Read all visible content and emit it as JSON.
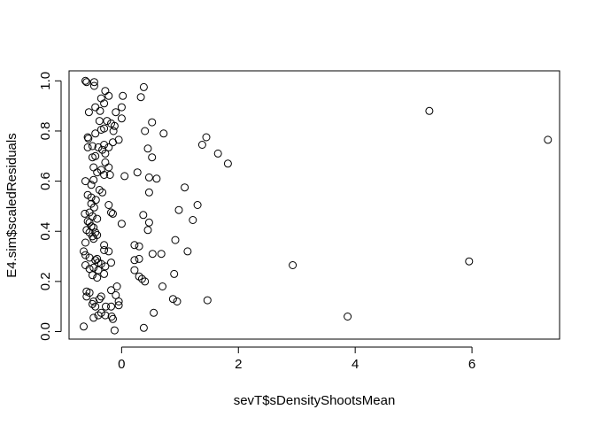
{
  "chart_data": {
    "type": "scatter",
    "title": "",
    "xlabel": "sevT$sDensityShootsMean",
    "ylabel": "E4.sim$scaledResiduals",
    "xlim": [
      -0.9,
      7.5
    ],
    "ylim": [
      -0.03,
      1.04
    ],
    "x_ticks": [
      0,
      2,
      4,
      6
    ],
    "y_ticks": [
      0.0,
      0.2,
      0.4,
      0.6,
      0.8,
      1.0
    ],
    "x_tick_labels": [
      "0",
      "2",
      "4",
      "6"
    ],
    "y_tick_labels": [
      "0.0",
      "0.2",
      "0.4",
      "0.6",
      "0.8",
      "1.0"
    ],
    "grid": false,
    "marker": "open-circle",
    "points": [
      [
        -0.62,
        1.0
      ],
      [
        -0.6,
        0.995
      ],
      [
        -0.47,
        0.995
      ],
      [
        -0.47,
        0.98
      ],
      [
        0.38,
        0.975
      ],
      [
        -0.28,
        0.96
      ],
      [
        -0.22,
        0.94
      ],
      [
        0.02,
        0.94
      ],
      [
        0.33,
        0.935
      ],
      [
        -0.35,
        0.93
      ],
      [
        -0.3,
        0.91
      ],
      [
        -0.45,
        0.895
      ],
      [
        -0.37,
        0.88
      ],
      [
        0.0,
        0.895
      ],
      [
        -0.1,
        0.875
      ],
      [
        -0.56,
        0.875
      ],
      [
        5.27,
        0.88
      ],
      [
        -0.38,
        0.84
      ],
      [
        -0.25,
        0.84
      ],
      [
        0.0,
        0.85
      ],
      [
        0.52,
        0.835
      ],
      [
        -0.18,
        0.83
      ],
      [
        -0.3,
        0.81
      ],
      [
        -0.12,
        0.82
      ],
      [
        -0.35,
        0.805
      ],
      [
        0.4,
        0.8
      ],
      [
        -0.45,
        0.79
      ],
      [
        0.72,
        0.79
      ],
      [
        -0.14,
        0.8
      ],
      [
        -0.58,
        0.775
      ],
      [
        -0.57,
        0.77
      ],
      [
        1.45,
        0.775
      ],
      [
        7.3,
        0.765
      ],
      [
        -0.05,
        0.765
      ],
      [
        -0.15,
        0.755
      ],
      [
        1.38,
        0.745
      ],
      [
        -0.3,
        0.745
      ],
      [
        -0.22,
        0.735
      ],
      [
        -0.4,
        0.735
      ],
      [
        -0.5,
        0.74
      ],
      [
        -0.58,
        0.735
      ],
      [
        0.45,
        0.73
      ],
      [
        -0.33,
        0.725
      ],
      [
        -0.28,
        0.71
      ],
      [
        1.65,
        0.71
      ],
      [
        -0.45,
        0.7
      ],
      [
        0.52,
        0.695
      ],
      [
        -0.5,
        0.695
      ],
      [
        -0.28,
        0.675
      ],
      [
        1.82,
        0.67
      ],
      [
        -0.48,
        0.655
      ],
      [
        -0.22,
        0.655
      ],
      [
        -0.35,
        0.645
      ],
      [
        0.27,
        0.635
      ],
      [
        -0.42,
        0.635
      ],
      [
        -0.3,
        0.625
      ],
      [
        -0.2,
        0.625
      ],
      [
        0.05,
        0.62
      ],
      [
        0.47,
        0.615
      ],
      [
        0.6,
        0.61
      ],
      [
        -0.48,
        0.605
      ],
      [
        -0.62,
        0.6
      ],
      [
        -0.52,
        0.585
      ],
      [
        1.08,
        0.575
      ],
      [
        -0.38,
        0.565
      ],
      [
        -0.33,
        0.555
      ],
      [
        0.47,
        0.555
      ],
      [
        -0.58,
        0.545
      ],
      [
        -0.52,
        0.535
      ],
      [
        -0.44,
        0.525
      ],
      [
        -0.52,
        0.51
      ],
      [
        -0.22,
        0.505
      ],
      [
        1.3,
        0.505
      ],
      [
        -0.47,
        0.495
      ],
      [
        0.98,
        0.485
      ],
      [
        -0.55,
        0.475
      ],
      [
        -0.63,
        0.47
      ],
      [
        -0.18,
        0.475
      ],
      [
        -0.15,
        0.47
      ],
      [
        0.37,
        0.465
      ],
      [
        -0.5,
        0.46
      ],
      [
        -0.42,
        0.45
      ],
      [
        1.22,
        0.445
      ],
      [
        -0.58,
        0.44
      ],
      [
        -0.55,
        0.435
      ],
      [
        0.47,
        0.435
      ],
      [
        0.0,
        0.43
      ],
      [
        -0.52,
        0.42
      ],
      [
        -0.48,
        0.415
      ],
      [
        -0.6,
        0.405
      ],
      [
        0.45,
        0.405
      ],
      [
        -0.55,
        0.395
      ],
      [
        -0.45,
        0.395
      ],
      [
        -0.5,
        0.38
      ],
      [
        -0.42,
        0.385
      ],
      [
        -0.48,
        0.37
      ],
      [
        0.92,
        0.365
      ],
      [
        -0.62,
        0.355
      ],
      [
        -0.3,
        0.345
      ],
      [
        0.22,
        0.345
      ],
      [
        0.3,
        0.34
      ],
      [
        -0.3,
        0.325
      ],
      [
        -0.65,
        0.32
      ],
      [
        0.53,
        0.31
      ],
      [
        -0.22,
        0.32
      ],
      [
        0.68,
        0.31
      ],
      [
        -0.62,
        0.305
      ],
      [
        1.13,
        0.32
      ],
      [
        -0.55,
        0.295
      ],
      [
        0.3,
        0.29
      ],
      [
        -0.42,
        0.29
      ],
      [
        0.22,
        0.285
      ],
      [
        -0.45,
        0.285
      ],
      [
        -0.4,
        0.275
      ],
      [
        5.95,
        0.28
      ],
      [
        -0.18,
        0.275
      ],
      [
        -0.35,
        0.27
      ],
      [
        -0.28,
        0.26
      ],
      [
        -0.62,
        0.265
      ],
      [
        2.93,
        0.265
      ],
      [
        -0.48,
        0.255
      ],
      [
        -0.55,
        0.25
      ],
      [
        -0.4,
        0.245
      ],
      [
        0.22,
        0.245
      ],
      [
        -0.3,
        0.23
      ],
      [
        0.9,
        0.23
      ],
      [
        -0.5,
        0.225
      ],
      [
        0.3,
        0.22
      ],
      [
        -0.42,
        0.215
      ],
      [
        0.35,
        0.21
      ],
      [
        0.4,
        0.2
      ],
      [
        0.7,
        0.18
      ],
      [
        -0.08,
        0.18
      ],
      [
        -0.18,
        0.165
      ],
      [
        -0.6,
        0.16
      ],
      [
        -0.55,
        0.155
      ],
      [
        -0.1,
        0.145
      ],
      [
        -0.35,
        0.14
      ],
      [
        -0.6,
        0.14
      ],
      [
        -0.38,
        0.13
      ],
      [
        0.88,
        0.13
      ],
      [
        -0.05,
        0.12
      ],
      [
        0.95,
        0.12
      ],
      [
        -0.48,
        0.12
      ],
      [
        1.47,
        0.125
      ],
      [
        -0.5,
        0.11
      ],
      [
        -0.05,
        0.105
      ],
      [
        -0.45,
        0.1
      ],
      [
        -0.27,
        0.1
      ],
      [
        -0.18,
        0.1
      ],
      [
        0.55,
        0.075
      ],
      [
        -0.35,
        0.075
      ],
      [
        -0.4,
        0.065
      ],
      [
        -0.28,
        0.065
      ],
      [
        3.87,
        0.06
      ],
      [
        -0.17,
        0.06
      ],
      [
        -0.48,
        0.055
      ],
      [
        -0.15,
        0.05
      ],
      [
        -0.65,
        0.02
      ],
      [
        0.38,
        0.015
      ],
      [
        -0.12,
        0.005
      ]
    ]
  }
}
